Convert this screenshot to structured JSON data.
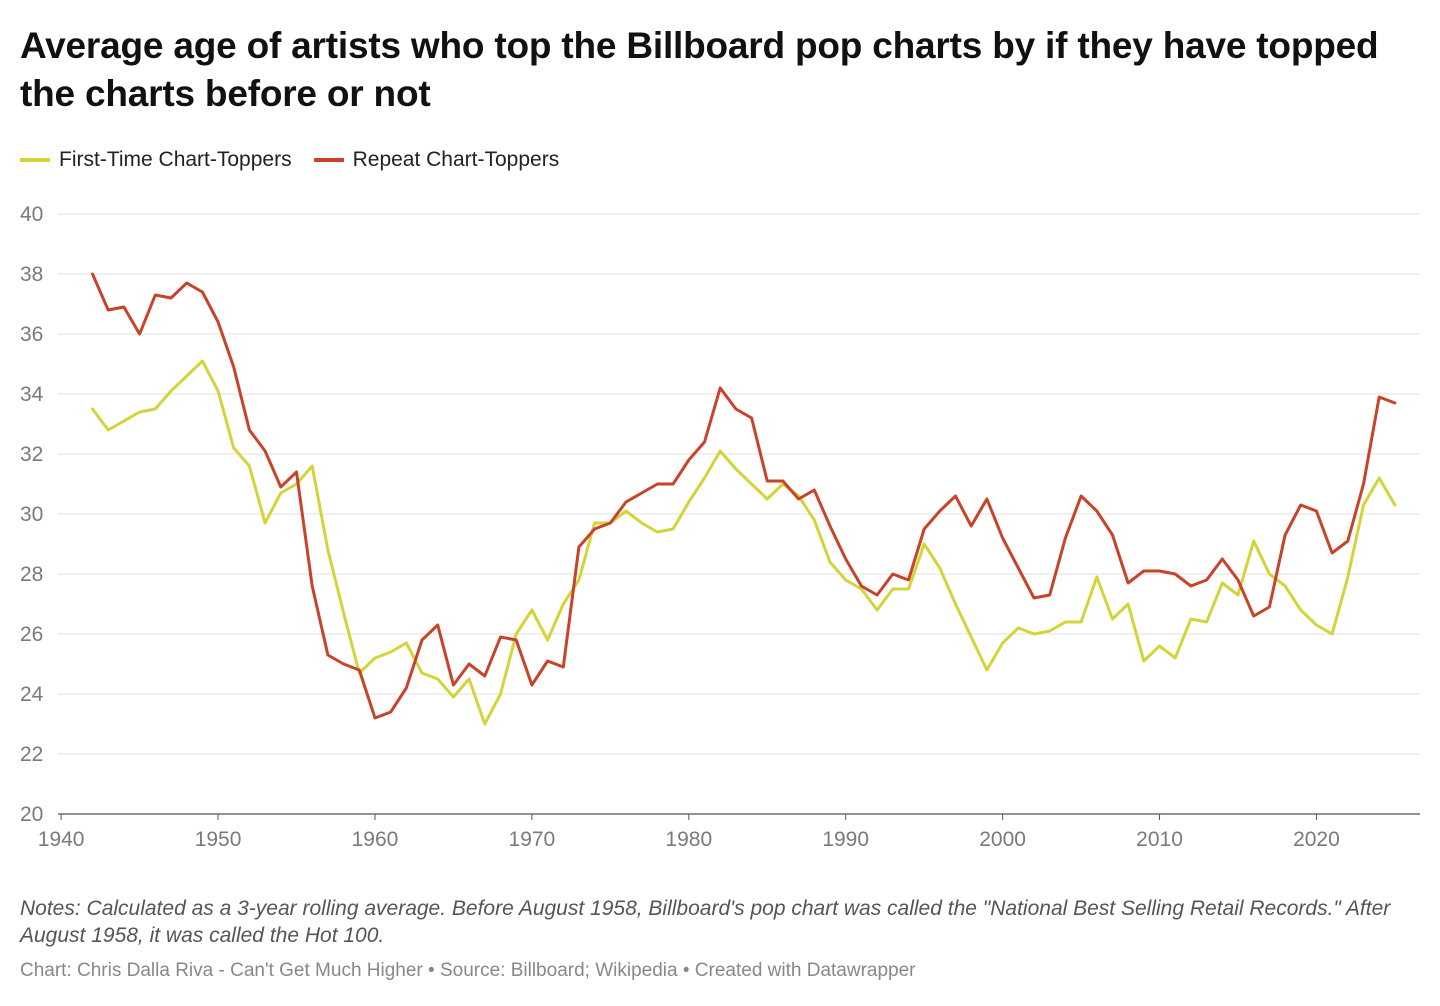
{
  "title": "Average age of artists who top the Billboard pop charts by if they have topped the charts before or not",
  "legend": [
    {
      "label": "First-Time Chart-Toppers",
      "color": "#d4d43a"
    },
    {
      "label": "Repeat Chart-Toppers",
      "color": "#c8432a"
    }
  ],
  "notes": "Notes: Calculated as a 3-year rolling average. Before August 1958, Billboard's pop chart was called the \"National Best Selling Retail Records.\" After August 1958, it was called the Hot 100.",
  "byline": "Chart: Chris Dalla Riva - Can't Get Much Higher • Source: Billboard; Wikipedia • Created with Datawrapper",
  "chart_data": {
    "type": "line",
    "title": "Average age of artists who top the Billboard pop charts by if they have topped the charts before or not",
    "xlabel": "",
    "ylabel": "",
    "xlim": [
      1939.8,
      2026.6
    ],
    "ylim": [
      20,
      40
    ],
    "x_ticks": [
      1940,
      1950,
      1960,
      1970,
      1980,
      1990,
      2000,
      2010,
      2020
    ],
    "y_ticks": [
      20,
      22,
      24,
      26,
      28,
      30,
      32,
      34,
      36,
      38,
      40
    ],
    "grid": true,
    "legend_position": "top-left",
    "x": [
      1942,
      1943,
      1944,
      1945,
      1946,
      1947,
      1948,
      1949,
      1950,
      1951,
      1952,
      1953,
      1954,
      1955,
      1956,
      1957,
      1958,
      1959,
      1960,
      1961,
      1962,
      1963,
      1964,
      1965,
      1966,
      1967,
      1968,
      1969,
      1970,
      1971,
      1972,
      1973,
      1974,
      1975,
      1976,
      1977,
      1978,
      1979,
      1980,
      1981,
      1982,
      1983,
      1984,
      1985,
      1986,
      1987,
      1988,
      1989,
      1990,
      1991,
      1992,
      1993,
      1994,
      1995,
      1996,
      1997,
      1998,
      1999,
      2000,
      2001,
      2002,
      2003,
      2004,
      2005,
      2006,
      2007,
      2008,
      2009,
      2010,
      2011,
      2012,
      2013,
      2014,
      2015,
      2016,
      2017,
      2018,
      2019,
      2020,
      2021,
      2022,
      2023,
      2024,
      2025
    ],
    "series": [
      {
        "name": "First-Time Chart-Toppers",
        "color": "#d4d43a",
        "values": [
          33.5,
          32.8,
          33.1,
          33.4,
          33.5,
          34.1,
          34.6,
          35.1,
          34.1,
          32.2,
          31.6,
          29.7,
          30.7,
          31.0,
          31.6,
          28.8,
          26.7,
          24.7,
          25.2,
          25.4,
          25.7,
          24.7,
          24.5,
          23.9,
          24.5,
          23.0,
          24.0,
          26.0,
          26.8,
          25.8,
          27.0,
          27.8,
          29.7,
          29.7,
          30.1,
          29.7,
          29.4,
          29.5,
          30.4,
          31.2,
          32.1,
          31.5,
          31.0,
          30.5,
          31.0,
          30.6,
          29.8,
          28.4,
          27.8,
          27.5,
          26.8,
          27.5,
          27.5,
          29.0,
          28.2,
          27.0,
          25.9,
          24.8,
          25.7,
          26.2,
          26.0,
          26.1,
          26.4,
          26.4,
          27.9,
          26.5,
          27.0,
          25.1,
          25.6,
          25.2,
          26.5,
          26.4,
          27.7,
          27.3,
          29.1,
          28.0,
          27.6,
          26.8,
          26.3,
          26.0,
          27.9,
          30.3,
          31.2,
          30.3
        ]
      },
      {
        "name": "Repeat Chart-Toppers",
        "color": "#c8432a",
        "values": [
          38.0,
          36.8,
          36.9,
          36.0,
          37.3,
          37.2,
          37.7,
          37.4,
          36.4,
          34.9,
          32.8,
          32.1,
          30.9,
          31.4,
          27.6,
          25.3,
          25.0,
          24.8,
          23.2,
          23.4,
          24.2,
          25.8,
          26.3,
          24.3,
          25.0,
          24.6,
          25.9,
          25.8,
          24.3,
          25.1,
          24.9,
          28.9,
          29.5,
          29.7,
          30.4,
          30.7,
          31.0,
          31.0,
          31.8,
          32.4,
          34.2,
          33.5,
          33.2,
          31.1,
          31.1,
          30.5,
          30.8,
          29.6,
          28.5,
          27.6,
          27.3,
          28.0,
          27.8,
          29.5,
          30.1,
          30.6,
          29.6,
          30.5,
          29.2,
          28.2,
          27.2,
          27.3,
          29.2,
          30.6,
          30.1,
          29.3,
          27.7,
          28.1,
          28.1,
          28.0,
          27.6,
          27.8,
          28.5,
          27.8,
          26.6,
          26.9,
          29.3,
          30.3,
          30.1,
          28.7,
          29.1,
          31.0,
          33.9,
          33.7
        ]
      }
    ]
  }
}
